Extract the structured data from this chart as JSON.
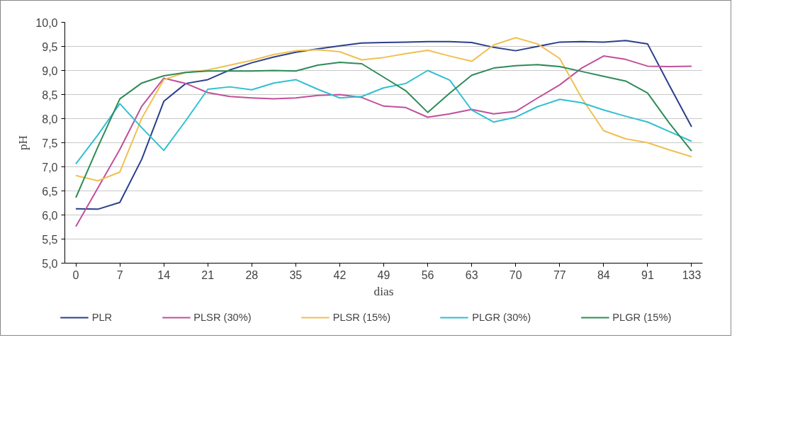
{
  "chart_data": {
    "type": "line",
    "xlabel": "dias",
    "ylabel": "pH",
    "categories": [
      "0",
      null,
      "7",
      null,
      "14",
      null,
      "21",
      null,
      "28",
      null,
      "35",
      null,
      "42",
      null,
      "49",
      null,
      "56",
      null,
      "63",
      null,
      "70",
      null,
      "77",
      null,
      "84",
      null,
      "91",
      null,
      "133"
    ],
    "ylim": [
      5.0,
      10.0
    ],
    "yticks": [
      {
        "value": 5.0,
        "label": "5,0"
      },
      {
        "value": 5.5,
        "label": "5,5"
      },
      {
        "value": 6.0,
        "label": "6,0"
      },
      {
        "value": 6.5,
        "label": "6,5"
      },
      {
        "value": 7.0,
        "label": "7,0"
      },
      {
        "value": 7.5,
        "label": "7,5"
      },
      {
        "value": 8.0,
        "label": "8,0"
      },
      {
        "value": 8.5,
        "label": "8,5"
      },
      {
        "value": 9.0,
        "label": "9,0"
      },
      {
        "value": 9.5,
        "label": "9,5"
      },
      {
        "value": 10.0,
        "label": "10,0"
      }
    ],
    "grid": "y",
    "legend": "bottom",
    "marker": "none",
    "line_style": "solid",
    "series": [
      {
        "name": "PLR",
        "color": "#2b3f8c",
        "values": [
          6.13,
          6.12,
          6.26,
          7.16,
          8.36,
          8.73,
          8.81,
          9.01,
          9.16,
          9.28,
          9.38,
          9.45,
          9.51,
          9.57,
          9.58,
          9.59,
          9.6,
          9.6,
          9.58,
          9.48,
          9.41,
          9.5,
          9.59,
          9.6,
          9.59,
          9.62,
          9.55,
          8.68,
          7.83
        ]
      },
      {
        "name": "PLSR (30%)",
        "color": "#c0509b",
        "values": [
          5.76,
          6.56,
          7.36,
          8.26,
          8.84,
          8.73,
          8.54,
          8.46,
          8.43,
          8.41,
          8.43,
          8.48,
          8.5,
          8.44,
          8.26,
          8.23,
          8.03,
          8.1,
          8.19,
          8.1,
          8.15,
          8.43,
          8.7,
          9.05,
          9.3,
          9.23,
          9.09,
          9.08,
          9.09
        ]
      },
      {
        "name": "PLSR (15%)",
        "color": "#f0c050",
        "values": [
          6.82,
          6.71,
          6.89,
          8.01,
          8.81,
          8.96,
          9.01,
          9.11,
          9.21,
          9.33,
          9.41,
          9.43,
          9.39,
          9.22,
          9.27,
          9.35,
          9.42,
          9.3,
          9.19,
          9.53,
          9.68,
          9.55,
          9.25,
          8.43,
          7.75,
          7.58,
          7.5,
          7.35,
          7.21
        ]
      },
      {
        "name": "PLGR (30%)",
        "color": "#30c0d0",
        "values": [
          7.06,
          7.66,
          8.31,
          7.81,
          7.34,
          7.96,
          8.61,
          8.66,
          8.6,
          8.74,
          8.81,
          8.61,
          8.43,
          8.46,
          8.64,
          8.73,
          9.0,
          8.8,
          8.18,
          7.93,
          8.03,
          8.25,
          8.4,
          8.33,
          8.18,
          8.05,
          7.93,
          7.73,
          7.53
        ]
      },
      {
        "name": "PLGR (15%)",
        "color": "#2e8b57",
        "values": [
          6.36,
          7.41,
          8.41,
          8.74,
          8.89,
          8.96,
          8.99,
          8.99,
          8.99,
          9.0,
          8.99,
          9.11,
          9.17,
          9.14,
          8.86,
          8.58,
          8.13,
          8.53,
          8.9,
          9.05,
          9.1,
          9.12,
          9.08,
          8.98,
          8.88,
          8.78,
          8.53,
          7.9,
          7.33
        ]
      }
    ]
  }
}
